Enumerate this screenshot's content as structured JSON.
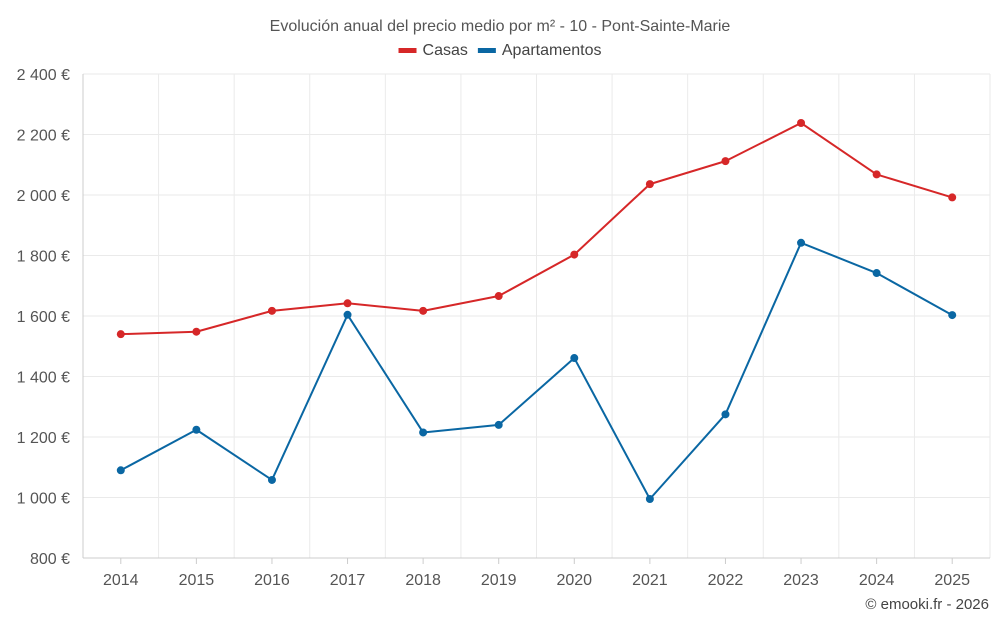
{
  "chart_data": {
    "type": "line",
    "title": "Evolución anual del precio medio por m² - 10 - Pont-Sainte-Marie",
    "categories": [
      "2014",
      "2015",
      "2016",
      "2017",
      "2018",
      "2019",
      "2020",
      "2021",
      "2022",
      "2023",
      "2024",
      "2025"
    ],
    "series": [
      {
        "name": "Casas",
        "color": "#d62728",
        "values": [
          1540,
          1548,
          1617,
          1642,
          1617,
          1666,
          1803,
          2036,
          2112,
          2238,
          2068,
          1992
        ]
      },
      {
        "name": "Apartamentos",
        "color": "#0a67a3",
        "values": [
          1090,
          1224,
          1058,
          1604,
          1215,
          1240,
          1461,
          995,
          1275,
          1842,
          1742,
          1603
        ]
      }
    ],
    "ylim": [
      800,
      2400
    ],
    "yticks": [
      800,
      1000,
      1200,
      1400,
      1600,
      1800,
      2000,
      2200,
      2400
    ],
    "ytick_labels": [
      "800 €",
      "1 000 €",
      "1 200 €",
      "1 400 €",
      "1 600 €",
      "1 800 €",
      "2 000 €",
      "2 200 €",
      "2 400 €"
    ],
    "xlabel": "",
    "ylabel": "",
    "grid": true,
    "legend_position": "top-center"
  },
  "credit": "© emooki.fr - 2026"
}
